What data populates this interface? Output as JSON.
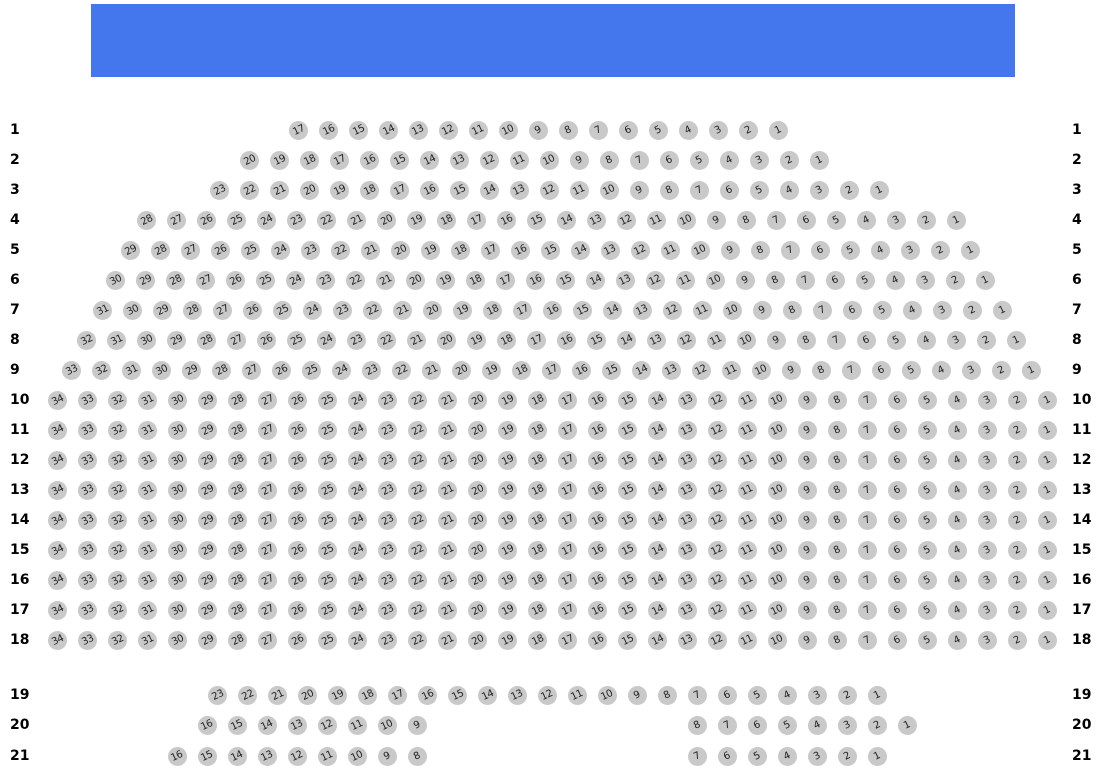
{
  "stage": {
    "color": "#4477EE"
  },
  "seat_color": "#C9C9C9",
  "rows": [
    {
      "label": "1",
      "segments": [
        {
          "from": 17,
          "to": 1
        }
      ]
    },
    {
      "label": "2",
      "segments": [
        {
          "from": 20,
          "to": 1
        }
      ]
    },
    {
      "label": "3",
      "segments": [
        {
          "from": 23,
          "to": 1
        }
      ]
    },
    {
      "label": "4",
      "segments": [
        {
          "from": 28,
          "to": 1
        }
      ]
    },
    {
      "label": "5",
      "segments": [
        {
          "from": 29,
          "to": 1
        }
      ]
    },
    {
      "label": "6",
      "segments": [
        {
          "from": 30,
          "to": 1
        }
      ]
    },
    {
      "label": "7",
      "segments": [
        {
          "from": 31,
          "to": 1
        }
      ]
    },
    {
      "label": "8",
      "segments": [
        {
          "from": 32,
          "to": 1
        }
      ]
    },
    {
      "label": "9",
      "segments": [
        {
          "from": 33,
          "to": 1
        }
      ]
    },
    {
      "label": "10",
      "segments": [
        {
          "from": 34,
          "to": 1
        }
      ]
    },
    {
      "label": "11",
      "segments": [
        {
          "from": 34,
          "to": 1
        }
      ]
    },
    {
      "label": "12",
      "segments": [
        {
          "from": 34,
          "to": 1
        }
      ]
    },
    {
      "label": "13",
      "segments": [
        {
          "from": 34,
          "to": 1
        }
      ]
    },
    {
      "label": "14",
      "segments": [
        {
          "from": 34,
          "to": 1
        }
      ]
    },
    {
      "label": "15",
      "segments": [
        {
          "from": 34,
          "to": 1
        }
      ]
    },
    {
      "label": "16",
      "segments": [
        {
          "from": 34,
          "to": 1
        }
      ]
    },
    {
      "label": "17",
      "segments": [
        {
          "from": 34,
          "to": 1
        }
      ]
    },
    {
      "label": "18",
      "segments": [
        {
          "from": 34,
          "to": 1
        }
      ]
    },
    {
      "label": "19",
      "segments": [
        {
          "from": 23,
          "to": 1
        }
      ]
    },
    {
      "label": "20",
      "segments": [
        {
          "from": 16,
          "to": 9
        },
        {
          "from": 8,
          "to": 1
        }
      ]
    },
    {
      "label": "21",
      "segments": [
        {
          "from": 16,
          "to": 8
        },
        {
          "from": 7,
          "to": 1
        }
      ]
    }
  ]
}
